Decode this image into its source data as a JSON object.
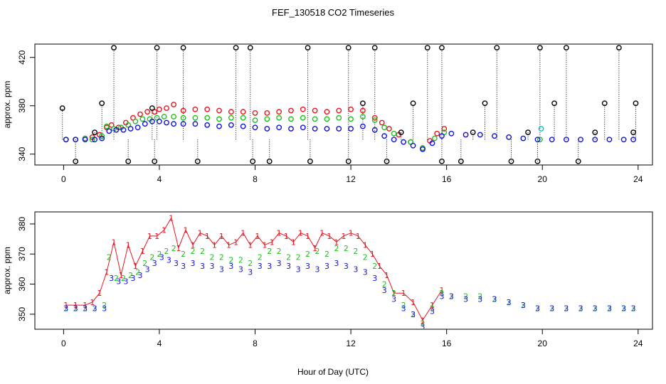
{
  "figure": {
    "title": "FEF_130518  CO2 Timeseries",
    "xlabel": "Hour of Day (UTC)"
  },
  "chart_data": [
    {
      "type": "scatter",
      "panel": "top",
      "ylabel": "approx. ppm",
      "xlim": [
        -1.2,
        24.6
      ],
      "ylim": [
        331,
        431
      ],
      "xticks": [
        0,
        4,
        8,
        12,
        16,
        20,
        24
      ],
      "yticks": [
        340,
        380,
        420
      ],
      "colors": {
        "black": "#000000",
        "red": "#e8141e",
        "green": "#1fbf1f",
        "blue": "#1010e0",
        "cyan": "#00c8c8"
      },
      "series": [
        {
          "color": "red",
          "x": [
            0.1,
            0.5,
            0.9,
            1.2,
            1.5,
            1.8,
            2.0,
            2.3,
            2.6,
            2.9,
            3.2,
            3.5,
            3.8,
            4.0,
            4.3,
            4.6,
            5.0,
            5.5,
            6.0,
            6.5,
            7.0,
            7.5,
            8.0,
            8.5,
            9.0,
            9.5,
            10.0,
            10.5,
            11.0,
            11.5,
            12.0,
            12.5,
            13.0,
            13.3,
            13.6,
            14.0,
            14.5,
            15.0,
            15.3,
            15.6,
            15.9
          ],
          "y": [
            352,
            352,
            353,
            354,
            356,
            362,
            364,
            362,
            366,
            370,
            373,
            375,
            375,
            377,
            378,
            381,
            376,
            377,
            377,
            376,
            375,
            375,
            374,
            374,
            375,
            376,
            377,
            376,
            375,
            376,
            377,
            376,
            370,
            366,
            361,
            356,
            350,
            345,
            351,
            357,
            361
          ]
        },
        {
          "color": "green",
          "x": [
            0.1,
            0.5,
            0.9,
            1.2,
            1.6,
            1.8,
            2.1,
            2.4,
            2.7,
            3.0,
            3.3,
            3.6,
            3.9,
            4.2,
            4.6,
            5.0,
            5.5,
            6.0,
            6.5,
            7.0,
            7.5,
            8.0,
            8.5,
            9.0,
            9.5,
            10.0,
            10.5,
            11.0,
            11.5,
            12.0,
            12.5,
            13.0,
            13.4,
            13.8,
            14.5,
            15.0,
            15.5,
            15.9,
            19.9
          ],
          "y": [
            352,
            352,
            353,
            352,
            355,
            363,
            361,
            362,
            364,
            367,
            369,
            369,
            370,
            371,
            371,
            370,
            370,
            370,
            369,
            370,
            370,
            368,
            369,
            370,
            369,
            370,
            369,
            369,
            370,
            369,
            371,
            368,
            362,
            357,
            350,
            345,
            353,
            358,
            352
          ]
        },
        {
          "color": "blue",
          "x": [
            0.1,
            0.5,
            0.9,
            1.3,
            1.6,
            1.9,
            2.2,
            2.5,
            2.8,
            3.1,
            3.4,
            3.7,
            4.0,
            4.3,
            4.6,
            5.0,
            5.5,
            6.0,
            6.5,
            7.0,
            7.5,
            8.0,
            8.5,
            9.0,
            9.5,
            10.0,
            10.5,
            11.0,
            11.5,
            12.0,
            12.5,
            13.0,
            13.4,
            13.8,
            14.2,
            14.6,
            15.0,
            15.4,
            15.8,
            16.2,
            16.8,
            17.4,
            18.0,
            18.6,
            19.2,
            19.8,
            20.4,
            21.0,
            21.6,
            22.2,
            22.8,
            23.4,
            23.8
          ],
          "y": [
            352,
            352,
            352,
            352,
            353,
            359,
            360,
            360,
            361,
            362,
            365,
            367,
            367,
            366,
            365,
            365,
            365,
            364,
            363,
            364,
            363,
            362,
            361,
            362,
            361,
            362,
            361,
            361,
            361,
            361,
            363,
            360,
            355,
            352,
            350,
            347,
            344,
            349,
            355,
            357,
            356,
            356,
            355,
            354,
            353,
            352,
            352,
            352,
            352,
            352,
            352,
            352,
            352
          ]
        },
        {
          "color": "cyan",
          "x": [
            19.95
          ],
          "y": [
            361
          ]
        },
        {
          "color": "black",
          "x": [
            -0.05,
            1.3,
            1.6,
            2.1,
            3.7,
            3.9,
            5.0,
            7.2,
            7.8,
            10.2,
            11.9,
            12.5,
            13.0,
            14.6,
            15.2,
            15.8,
            17.6,
            18.1,
            19.9,
            20.5,
            21.0,
            22.6,
            23.2,
            23.9
          ],
          "y": [
            378,
            358,
            382,
            428,
            378,
            428,
            428,
            428,
            428,
            428,
            428,
            382,
            428,
            382,
            428,
            428,
            382,
            428,
            428,
            382,
            428,
            382,
            428,
            382
          ]
        },
        {
          "color": "black",
          "x": [
            0.5,
            2.7,
            3.8,
            5.6,
            7.9,
            8.6,
            10.3,
            11.9,
            13.5,
            14.1,
            15.8,
            16.6,
            17.1,
            18.7,
            19.4,
            19.8,
            21.5,
            22.2,
            23.8
          ],
          "y": [
            334,
            334,
            334,
            334,
            334,
            334,
            334,
            334,
            334,
            358,
            334,
            334,
            358,
            334,
            358,
            334,
            334,
            358,
            358
          ]
        }
      ]
    },
    {
      "type": "scatter",
      "panel": "bottom",
      "ylabel": "approx. ppm",
      "xlim": [
        -1.2,
        24.6
      ],
      "ylim": [
        345,
        384
      ],
      "xticks": [
        0,
        4,
        8,
        12,
        16,
        20,
        24
      ],
      "yticks": [
        350,
        360,
        370,
        380
      ],
      "colors": {
        "red": "#e8141e",
        "green": "#1fbf1f",
        "blue": "#1010e0"
      },
      "series": [
        {
          "color": "red",
          "marker_text": "1",
          "x": [
            0.1,
            0.5,
            0.9,
            1.2,
            1.5,
            1.8,
            2.1,
            2.4,
            2.7,
            3.0,
            3.3,
            3.6,
            3.9,
            4.2,
            4.5,
            4.8,
            5.1,
            5.4,
            5.7,
            6.0,
            6.3,
            6.6,
            6.9,
            7.2,
            7.5,
            7.8,
            8.1,
            8.4,
            8.7,
            9.0,
            9.3,
            9.6,
            9.9,
            10.2,
            10.5,
            10.8,
            11.1,
            11.4,
            11.7,
            12.0,
            12.3,
            12.6,
            12.9,
            13.2,
            13.5,
            13.8,
            14.2,
            14.6,
            15.0,
            15.4,
            15.8
          ],
          "y": [
            353,
            353,
            353,
            354,
            357,
            364,
            374,
            363,
            373,
            366,
            371,
            376,
            376,
            378,
            382,
            372,
            378,
            373,
            377,
            376,
            373,
            376,
            373,
            374,
            377,
            373,
            376,
            373,
            374,
            377,
            376,
            374,
            377,
            376,
            372,
            377,
            376,
            374,
            376,
            377,
            376,
            373,
            370,
            366,
            363,
            357,
            357,
            354,
            348,
            353,
            358
          ]
        },
        {
          "color": "green",
          "marker_text": "2",
          "x": [
            0.1,
            0.5,
            0.9,
            1.3,
            1.7,
            1.9,
            2.2,
            2.5,
            2.8,
            3.1,
            3.4,
            3.7,
            4.0,
            4.3,
            4.6,
            5.0,
            5.4,
            5.8,
            6.2,
            6.6,
            7.0,
            7.4,
            7.8,
            8.2,
            8.6,
            9.0,
            9.4,
            9.8,
            10.2,
            10.6,
            11.0,
            11.4,
            11.8,
            12.2,
            12.6,
            13.0,
            13.4,
            13.8,
            14.2,
            14.6,
            15.0,
            15.4,
            15.8,
            16.2,
            16.8,
            17.4,
            18.0,
            18.6,
            19.2,
            19.8,
            20.4,
            21.0,
            21.6,
            22.2,
            22.8,
            23.4,
            23.8
          ],
          "y": [
            352,
            352,
            352,
            352,
            353,
            369,
            362,
            362,
            363,
            364,
            367,
            369,
            370,
            371,
            372,
            370,
            371,
            371,
            369,
            369,
            368,
            368,
            367,
            369,
            371,
            371,
            369,
            369,
            370,
            371,
            370,
            372,
            372,
            371,
            369,
            366,
            360,
            357,
            353,
            350,
            347,
            352,
            357,
            356,
            356,
            356,
            355,
            354,
            353,
            352,
            352,
            352,
            352,
            352,
            352,
            352,
            352
          ]
        },
        {
          "color": "blue",
          "marker_text": "3",
          "x": [
            0.1,
            0.5,
            0.9,
            1.3,
            1.7,
            2.0,
            2.3,
            2.6,
            2.9,
            3.2,
            3.5,
            3.8,
            4.1,
            4.4,
            4.7,
            5.0,
            5.4,
            5.8,
            6.2,
            6.6,
            7.0,
            7.4,
            7.8,
            8.2,
            8.6,
            9.0,
            9.4,
            9.8,
            10.2,
            10.6,
            11.0,
            11.4,
            11.8,
            12.2,
            12.6,
            13.0,
            13.4,
            13.8,
            14.2,
            14.6,
            15.0,
            15.4,
            15.8,
            16.2,
            16.8,
            17.4,
            18.0,
            18.6,
            19.2,
            19.8,
            20.4,
            21.0,
            21.6,
            22.2,
            22.8,
            23.4,
            23.8
          ],
          "y": [
            352,
            352,
            352,
            352,
            352,
            362,
            361,
            361,
            362,
            363,
            365,
            367,
            369,
            368,
            367,
            366,
            367,
            366,
            366,
            365,
            366,
            365,
            364,
            366,
            366,
            367,
            366,
            365,
            366,
            365,
            366,
            367,
            366,
            365,
            364,
            362,
            358,
            355,
            352,
            350,
            346,
            351,
            356,
            356,
            355,
            355,
            355,
            354,
            353,
            352,
            352,
            352,
            352,
            352,
            352,
            352,
            352
          ]
        }
      ]
    }
  ]
}
